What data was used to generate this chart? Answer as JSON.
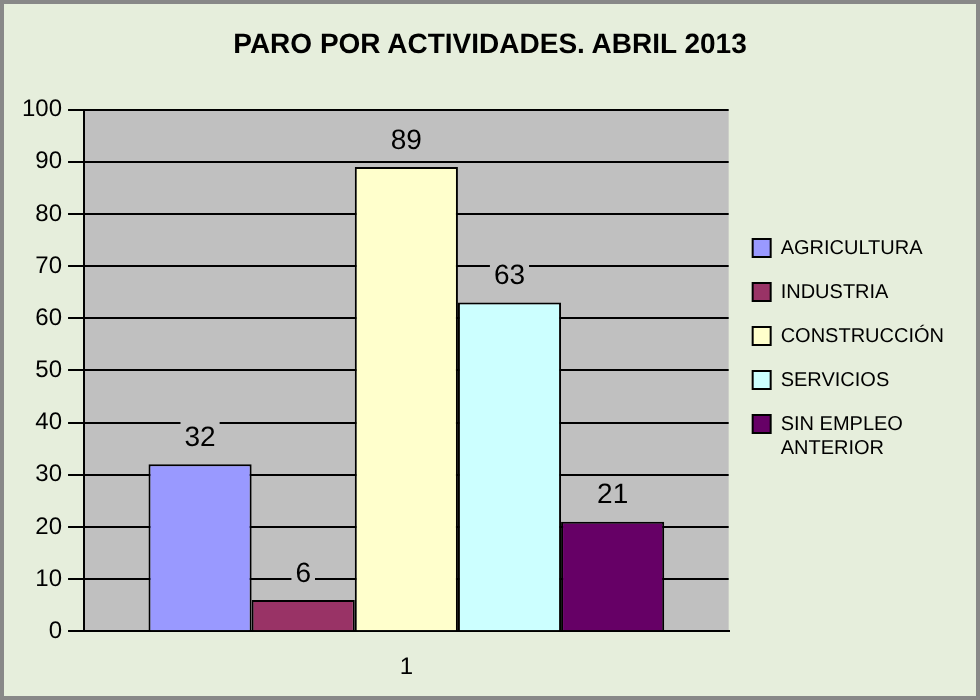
{
  "chart_data": {
    "type": "bar",
    "title": "PARO POR ACTIVIDADES. ABRIL 2013",
    "categories": [
      "1"
    ],
    "series": [
      {
        "name": "AGRICULTURA",
        "color": "#9999ff",
        "values": [
          32
        ]
      },
      {
        "name": "INDUSTRIA",
        "color": "#993366",
        "values": [
          6
        ]
      },
      {
        "name": "CONSTRUCCIÓN",
        "color": "#ffffcc",
        "values": [
          89
        ]
      },
      {
        "name": "SERVICIOS",
        "color": "#ccffff",
        "values": [
          63
        ]
      },
      {
        "name": "SIN EMPLEO ANTERIOR",
        "color": "#660066",
        "values": [
          21
        ]
      }
    ],
    "ylim": [
      0,
      100
    ],
    "yticks": [
      0,
      10,
      20,
      30,
      40,
      50,
      60,
      70,
      80,
      90,
      100
    ],
    "grid": "y",
    "legend": "right",
    "data_labels": true
  }
}
